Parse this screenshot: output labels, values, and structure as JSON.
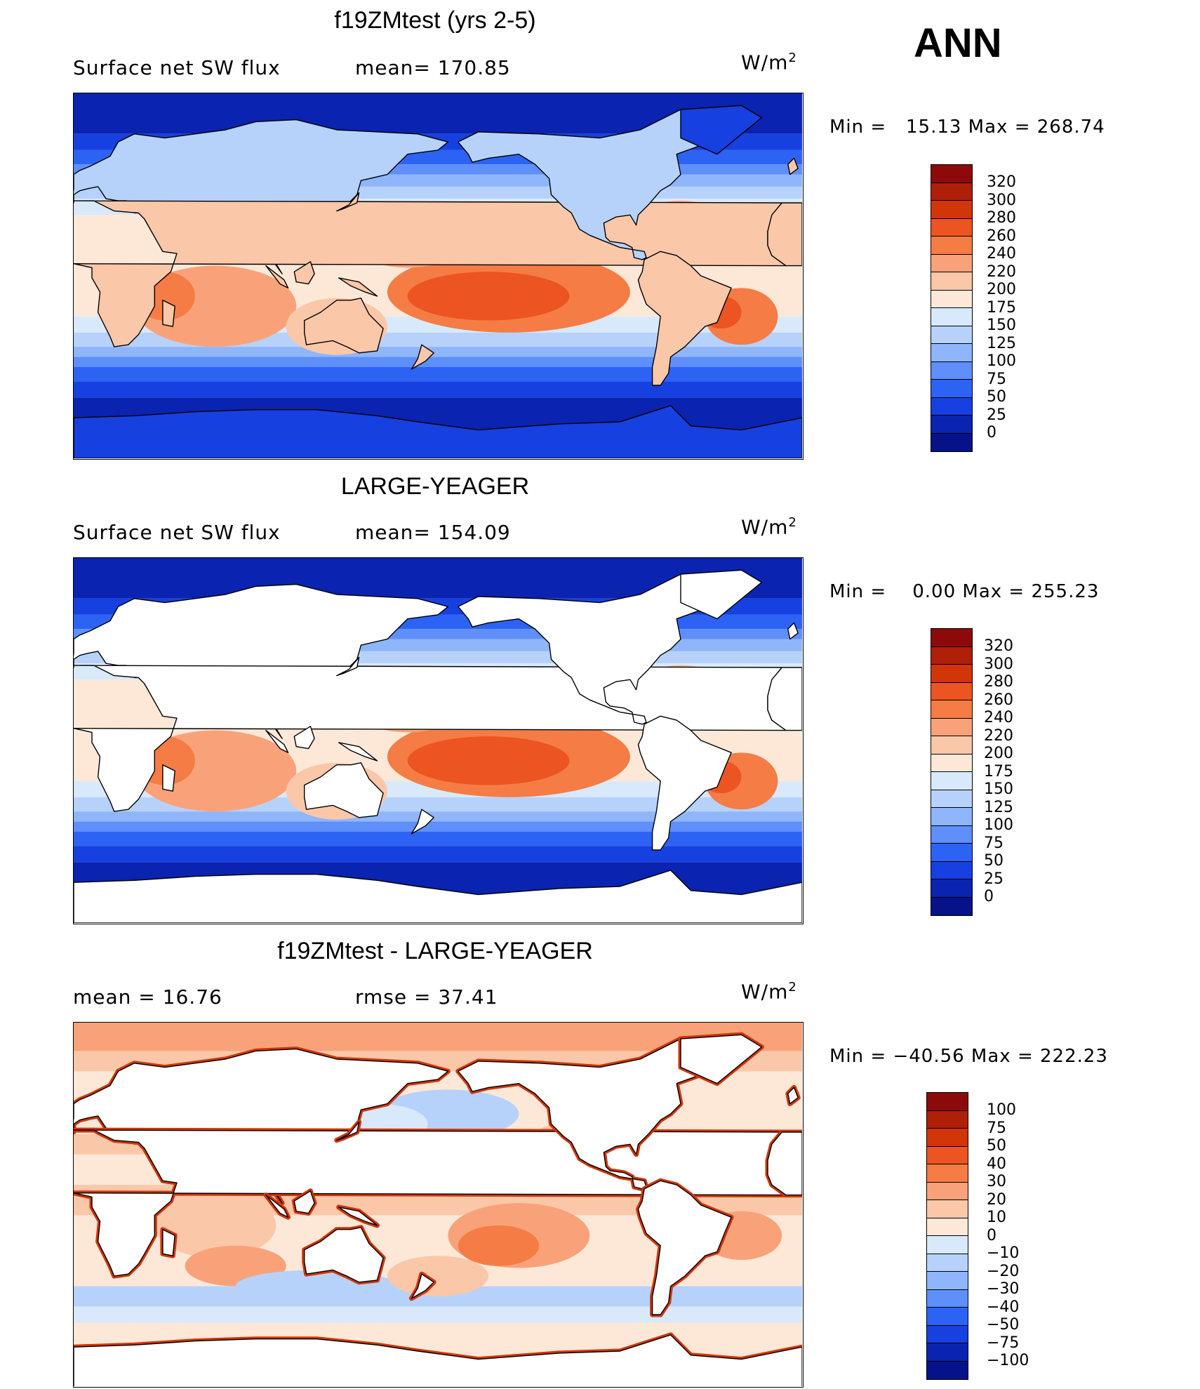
{
  "season": "ANN",
  "units_base": "W/m",
  "units_exp": "2",
  "panels": [
    {
      "title": "f19ZMtest (yrs 2-5)",
      "left_label": "Surface net SW flux",
      "mid_label": "mean= 170.85",
      "minmax": "Min =   15.13 Max = 268.74",
      "field": "f19ZMtest",
      "land_masked": false
    },
    {
      "title": "LARGE-YEAGER",
      "left_label": "Surface net SW flux",
      "mid_label": "mean= 154.09",
      "minmax": "Min =    0.00 Max = 255.23",
      "field": "LARGE-YEAGER",
      "land_masked": true
    },
    {
      "title": "f19ZMtest - LARGE-YEAGER",
      "left_label": "mean =   16.76",
      "mid_label": "rmse =   37.41",
      "minmax": "Min = −40.56 Max = 222.23",
      "field": "difference",
      "land_masked": true
    }
  ],
  "colorbar_abs": {
    "labels": [
      "320",
      "300",
      "280",
      "260",
      "240",
      "220",
      "200",
      "175",
      "150",
      "125",
      "100",
      "75",
      "50",
      "25",
      "0"
    ],
    "colors": [
      "#8c0a0a",
      "#b01f08",
      "#d13508",
      "#ec5421",
      "#f57c45",
      "#f9a27a",
      "#fbc7a9",
      "#fde8d8",
      "#d8e9fb",
      "#b6d2fb",
      "#8fb5fb",
      "#5e8ffa",
      "#2d63f5",
      "#1640e0",
      "#0a23b0",
      "#05128a"
    ]
  },
  "colorbar_diff": {
    "labels": [
      "100",
      "75",
      "50",
      "40",
      "30",
      "20",
      "10",
      "0",
      "−10",
      "−20",
      "−30",
      "−40",
      "−50",
      "−75",
      "−100"
    ],
    "colors": [
      "#8c0a0a",
      "#b01f08",
      "#d13508",
      "#ec5421",
      "#f57c45",
      "#f9a27a",
      "#fbc7a9",
      "#fde8d8",
      "#d8e9fb",
      "#b6d2fb",
      "#8fb5fb",
      "#5e8ffa",
      "#2d63f5",
      "#1640e0",
      "#0a23b0",
      "#05128a"
    ]
  }
}
